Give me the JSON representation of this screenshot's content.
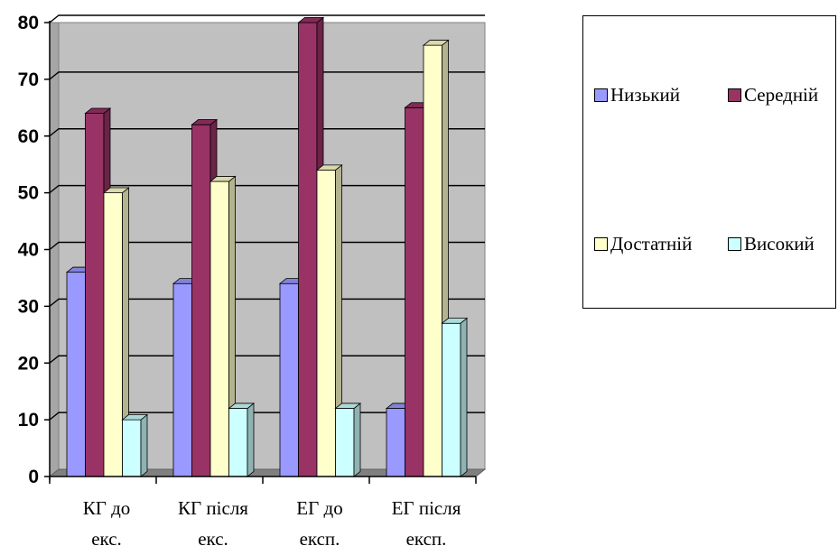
{
  "chart_data": {
    "type": "bar",
    "categories": [
      "КГ до екс.",
      "КГ після екс.",
      "ЕГ до експ.",
      "ЕГ після експ."
    ],
    "series": [
      {
        "name": "Низький",
        "values": [
          36,
          34,
          34,
          12
        ],
        "color": "#9999ff"
      },
      {
        "name": "Середній",
        "values": [
          64,
          62,
          80,
          65
        ],
        "color": "#993366"
      },
      {
        "name": "Достатній",
        "values": [
          50,
          52,
          54,
          76
        ],
        "color": "#ffffcc"
      },
      {
        "name": "Високий",
        "values": [
          10,
          12,
          12,
          27
        ],
        "color": "#ccffff"
      }
    ],
    "ylim": [
      0,
      80
    ],
    "yticks": [
      0,
      10,
      20,
      30,
      40,
      50,
      60,
      70,
      80
    ],
    "grid": true,
    "legend_position": "right",
    "plot_background": "#c0c0c0"
  }
}
